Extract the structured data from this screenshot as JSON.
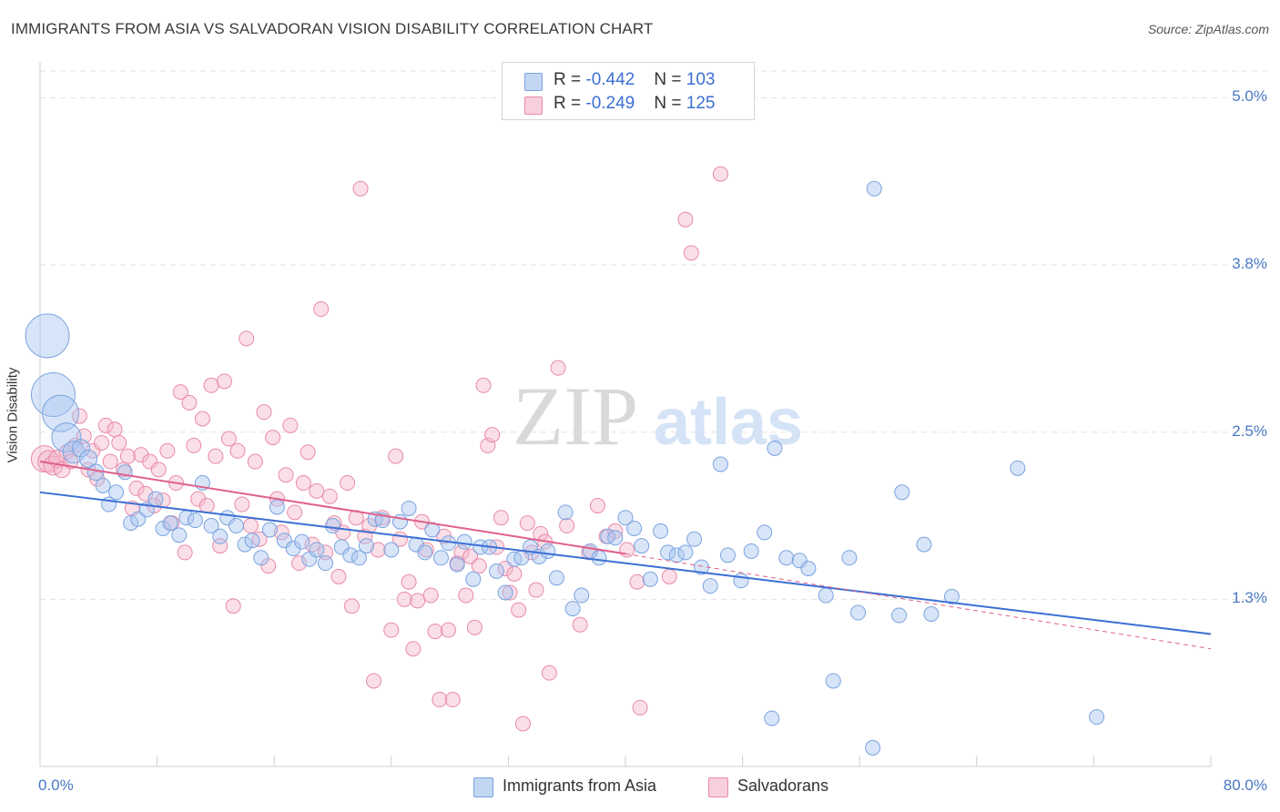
{
  "title": "IMMIGRANTS FROM ASIA VS SALVADORAN VISION DISABILITY CORRELATION CHART",
  "source": "Source: ZipAtlas.com",
  "watermark": {
    "zip": "ZIP",
    "atlas": "atlas"
  },
  "colors": {
    "asia_fill": "#a9c6ef",
    "asia_stroke": "#7aa3df",
    "asia_line": "#3b6fd4",
    "salv_fill": "#f5b8cb",
    "salv_stroke": "#e98aa8",
    "salv_line": "#e0608a",
    "tick_label": "#4a78c4",
    "grid": "#e2e2e2"
  },
  "legend_top": {
    "rows": [
      {
        "r_label": "R = ",
        "r_value": "-0.442",
        "n_label": "N = ",
        "n_value": "103"
      },
      {
        "r_label": "R = ",
        "r_value": "-0.249",
        "n_label": "N = ",
        "n_value": "125"
      }
    ]
  },
  "legend_bottom": {
    "items": [
      "Immigrants from Asia",
      "Salvadorans"
    ]
  },
  "chart_data": {
    "type": "scatter",
    "xlabel": "",
    "ylabel": "Vision Disability",
    "xlim": [
      0,
      80
    ],
    "ylim": [
      0,
      5.2
    ],
    "x_tick_labels": [
      {
        "value": 0,
        "label": "0.0%"
      },
      {
        "value": 80,
        "label": "80.0%"
      }
    ],
    "y_tick_labels": [
      {
        "value": 1.25,
        "label": "1.3%"
      },
      {
        "value": 2.5,
        "label": "2.5%"
      },
      {
        "value": 3.75,
        "label": "3.8%"
      },
      {
        "value": 5.0,
        "label": "5.0%"
      }
    ],
    "grid": true,
    "legend_position": "top-center",
    "series": [
      {
        "name": "Immigrants from Asia",
        "r": -0.442,
        "n": 103,
        "trend": {
          "x": [
            0,
            80
          ],
          "y": [
            2.05,
            0.99
          ]
        },
        "points": [
          [
            0.5,
            3.22,
            3
          ],
          [
            0.9,
            2.78,
            3
          ],
          [
            1.4,
            2.64,
            2.5
          ],
          [
            1.8,
            2.46,
            2
          ],
          [
            2.3,
            2.35,
            1.5
          ],
          [
            2.8,
            2.38,
            1.2
          ],
          [
            3.3,
            2.3,
            1.2
          ],
          [
            3.8,
            2.2,
            1.1
          ],
          [
            4.3,
            2.1,
            1
          ],
          [
            4.7,
            1.96,
            1
          ],
          [
            5.2,
            2.05,
            1
          ],
          [
            5.8,
            2.2,
            1
          ],
          [
            6.2,
            1.82,
            1
          ],
          [
            6.7,
            1.85,
            1
          ],
          [
            7.3,
            1.92,
            1
          ],
          [
            7.9,
            2.0,
            1
          ],
          [
            8.4,
            1.78,
            1
          ],
          [
            8.9,
            1.82,
            1
          ],
          [
            9.5,
            1.73,
            1
          ],
          [
            10.0,
            1.86,
            1
          ],
          [
            10.6,
            1.84,
            1
          ],
          [
            11.1,
            2.12,
            1
          ],
          [
            11.7,
            1.8,
            1
          ],
          [
            12.3,
            1.72,
            1
          ],
          [
            12.8,
            1.86,
            1
          ],
          [
            13.4,
            1.8,
            1
          ],
          [
            14.0,
            1.66,
            1
          ],
          [
            14.5,
            1.69,
            1
          ],
          [
            15.1,
            1.56,
            1
          ],
          [
            15.7,
            1.77,
            1
          ],
          [
            16.2,
            1.94,
            1
          ],
          [
            16.7,
            1.69,
            1
          ],
          [
            17.3,
            1.63,
            1
          ],
          [
            17.9,
            1.68,
            1
          ],
          [
            18.4,
            1.55,
            1
          ],
          [
            18.9,
            1.62,
            1
          ],
          [
            19.5,
            1.52,
            1
          ],
          [
            20.0,
            1.8,
            1
          ],
          [
            20.6,
            1.64,
            1
          ],
          [
            21.2,
            1.58,
            1
          ],
          [
            21.8,
            1.56,
            1
          ],
          [
            22.3,
            1.65,
            1
          ],
          [
            22.9,
            1.85,
            1
          ],
          [
            23.4,
            1.84,
            1
          ],
          [
            24.0,
            1.62,
            1
          ],
          [
            24.6,
            1.83,
            1
          ],
          [
            25.2,
            1.93,
            1
          ],
          [
            25.7,
            1.66,
            1
          ],
          [
            26.3,
            1.6,
            1
          ],
          [
            26.8,
            1.77,
            1
          ],
          [
            27.4,
            1.56,
            1
          ],
          [
            27.9,
            1.67,
            1
          ],
          [
            28.5,
            1.51,
            1
          ],
          [
            29.0,
            1.68,
            1
          ],
          [
            29.6,
            1.4,
            1
          ],
          [
            30.1,
            1.64,
            1
          ],
          [
            30.7,
            1.64,
            1
          ],
          [
            31.2,
            1.46,
            1
          ],
          [
            31.8,
            1.3,
            1
          ],
          [
            32.4,
            1.55,
            1
          ],
          [
            32.9,
            1.56,
            1
          ],
          [
            33.5,
            1.64,
            1
          ],
          [
            34.1,
            1.57,
            1
          ],
          [
            34.7,
            1.61,
            1
          ],
          [
            35.3,
            1.41,
            1
          ],
          [
            35.9,
            1.9,
            1
          ],
          [
            36.4,
            1.18,
            1
          ],
          [
            37.0,
            1.28,
            1
          ],
          [
            37.6,
            1.61,
            1
          ],
          [
            38.2,
            1.56,
            1
          ],
          [
            38.8,
            1.72,
            1
          ],
          [
            39.3,
            1.71,
            1
          ],
          [
            40.0,
            1.86,
            1
          ],
          [
            40.6,
            1.78,
            1
          ],
          [
            41.1,
            1.65,
            1
          ],
          [
            41.7,
            1.4,
            1
          ],
          [
            42.4,
            1.76,
            1
          ],
          [
            42.9,
            1.6,
            1
          ],
          [
            43.5,
            1.58,
            1
          ],
          [
            44.1,
            1.6,
            1
          ],
          [
            44.7,
            1.7,
            1
          ],
          [
            45.2,
            1.49,
            1
          ],
          [
            45.8,
            1.35,
            1
          ],
          [
            46.5,
            2.26,
            1
          ],
          [
            47.0,
            1.58,
            1
          ],
          [
            47.9,
            1.39,
            1
          ],
          [
            48.6,
            1.61,
            1
          ],
          [
            49.5,
            1.75,
            1
          ],
          [
            50.2,
            2.38,
            1
          ],
          [
            51.0,
            1.56,
            1
          ],
          [
            51.9,
            1.54,
            1
          ],
          [
            52.5,
            1.48,
            1
          ],
          [
            53.7,
            1.28,
            1
          ],
          [
            54.2,
            0.64,
            1
          ],
          [
            55.3,
            1.56,
            1
          ],
          [
            55.9,
            1.15,
            1
          ],
          [
            56.9,
            0.14,
            1
          ],
          [
            58.7,
            1.13,
            1
          ],
          [
            60.4,
            1.66,
            1
          ],
          [
            60.9,
            1.14,
            1
          ],
          [
            62.3,
            1.27,
            1
          ],
          [
            66.8,
            2.23,
            1
          ],
          [
            57.0,
            4.32,
            1
          ],
          [
            58.9,
            2.05,
            1
          ],
          [
            72.2,
            0.37,
            1
          ],
          [
            50.0,
            0.36,
            1
          ]
        ]
      },
      {
        "name": "Salvadorans",
        "r": -0.249,
        "n": 125,
        "trend": {
          "x": [
            0,
            40
          ],
          "y": [
            2.28,
            1.59
          ]
        },
        "trend_dashed": {
          "x": [
            40,
            80
          ],
          "y": [
            1.59,
            0.88
          ]
        },
        "points": [
          [
            0.3,
            2.3,
            1.8
          ],
          [
            0.6,
            2.28,
            1.5
          ],
          [
            0.9,
            2.25,
            1.3
          ],
          [
            1.2,
            2.3,
            1.2
          ],
          [
            1.5,
            2.22,
            1.1
          ],
          [
            1.8,
            2.35,
            1
          ],
          [
            2.1,
            2.28,
            1
          ],
          [
            2.4,
            2.4,
            1
          ],
          [
            2.7,
            2.62,
            1
          ],
          [
            3.0,
            2.47,
            1
          ],
          [
            3.3,
            2.22,
            1
          ],
          [
            3.6,
            2.36,
            1
          ],
          [
            3.9,
            2.15,
            1
          ],
          [
            4.2,
            2.42,
            1
          ],
          [
            4.5,
            2.55,
            1
          ],
          [
            4.8,
            2.28,
            1
          ],
          [
            5.1,
            2.52,
            1
          ],
          [
            5.4,
            2.42,
            1
          ],
          [
            5.7,
            2.22,
            1
          ],
          [
            6.0,
            2.32,
            1
          ],
          [
            6.3,
            1.93,
            1
          ],
          [
            6.6,
            2.08,
            1
          ],
          [
            6.9,
            2.33,
            1
          ],
          [
            7.2,
            2.04,
            1
          ],
          [
            7.5,
            2.28,
            1
          ],
          [
            7.8,
            1.95,
            1
          ],
          [
            8.1,
            2.22,
            1
          ],
          [
            8.4,
            1.99,
            1
          ],
          [
            8.7,
            2.36,
            1
          ],
          [
            9.0,
            1.82,
            1
          ],
          [
            9.3,
            2.12,
            1
          ],
          [
            9.6,
            2.8,
            1
          ],
          [
            9.9,
            1.6,
            1
          ],
          [
            10.2,
            2.72,
            1
          ],
          [
            10.5,
            2.4,
            1
          ],
          [
            10.8,
            2.0,
            1
          ],
          [
            11.1,
            2.6,
            1
          ],
          [
            11.4,
            1.95,
            1
          ],
          [
            11.7,
            2.85,
            1
          ],
          [
            12.0,
            2.32,
            1
          ],
          [
            12.3,
            1.65,
            1
          ],
          [
            12.6,
            2.88,
            1
          ],
          [
            12.9,
            2.45,
            1
          ],
          [
            13.2,
            1.2,
            1
          ],
          [
            13.5,
            2.36,
            1
          ],
          [
            13.8,
            1.96,
            1
          ],
          [
            14.1,
            3.2,
            1
          ],
          [
            14.4,
            1.8,
            1
          ],
          [
            14.7,
            2.28,
            1
          ],
          [
            15.0,
            1.7,
            1
          ],
          [
            15.3,
            2.65,
            1
          ],
          [
            15.6,
            1.5,
            1
          ],
          [
            15.9,
            2.46,
            1
          ],
          [
            16.2,
            2.0,
            1
          ],
          [
            16.5,
            1.75,
            1
          ],
          [
            16.8,
            2.18,
            1
          ],
          [
            17.1,
            2.55,
            1
          ],
          [
            17.4,
            1.9,
            1
          ],
          [
            17.7,
            1.52,
            1
          ],
          [
            18.0,
            2.12,
            1
          ],
          [
            18.3,
            2.35,
            1
          ],
          [
            18.6,
            1.66,
            1
          ],
          [
            18.9,
            2.06,
            1
          ],
          [
            19.2,
            3.42,
            1
          ],
          [
            19.5,
            1.6,
            1
          ],
          [
            19.8,
            2.02,
            1
          ],
          [
            20.1,
            1.82,
            1
          ],
          [
            20.4,
            1.42,
            1
          ],
          [
            20.7,
            1.75,
            1
          ],
          [
            21.0,
            2.12,
            1
          ],
          [
            21.3,
            1.2,
            1
          ],
          [
            21.6,
            1.86,
            1
          ],
          [
            21.9,
            4.32,
            1
          ],
          [
            22.2,
            1.72,
            1
          ],
          [
            22.5,
            1.8,
            1
          ],
          [
            22.8,
            0.64,
            1
          ],
          [
            23.1,
            1.62,
            1
          ],
          [
            23.4,
            1.86,
            1
          ],
          [
            24.0,
            1.02,
            1
          ],
          [
            24.3,
            2.32,
            1
          ],
          [
            24.6,
            1.7,
            1
          ],
          [
            24.9,
            1.25,
            1
          ],
          [
            25.2,
            1.38,
            1
          ],
          [
            25.5,
            0.88,
            1
          ],
          [
            25.8,
            1.24,
            1
          ],
          [
            26.1,
            1.83,
            1
          ],
          [
            26.4,
            1.62,
            1
          ],
          [
            26.7,
            1.28,
            1
          ],
          [
            27.0,
            1.01,
            1
          ],
          [
            27.3,
            0.5,
            1
          ],
          [
            27.6,
            1.72,
            1
          ],
          [
            27.9,
            1.02,
            1
          ],
          [
            28.2,
            0.5,
            1
          ],
          [
            28.5,
            1.52,
            1
          ],
          [
            28.8,
            1.6,
            1
          ],
          [
            29.1,
            1.28,
            1
          ],
          [
            29.4,
            1.57,
            1
          ],
          [
            29.7,
            1.04,
            1
          ],
          [
            30.0,
            1.5,
            1
          ],
          [
            30.3,
            2.85,
            1
          ],
          [
            30.6,
            2.4,
            1
          ],
          [
            30.9,
            2.48,
            1
          ],
          [
            31.2,
            1.64,
            1
          ],
          [
            31.5,
            1.86,
            1
          ],
          [
            31.8,
            1.48,
            1
          ],
          [
            32.1,
            1.3,
            1
          ],
          [
            32.4,
            1.44,
            1
          ],
          [
            32.7,
            1.17,
            1
          ],
          [
            33.0,
            0.32,
            1
          ],
          [
            33.3,
            1.82,
            1
          ],
          [
            33.6,
            1.6,
            1
          ],
          [
            33.9,
            1.32,
            1
          ],
          [
            34.2,
            1.74,
            1
          ],
          [
            34.5,
            1.68,
            1
          ],
          [
            34.8,
            0.7,
            1
          ],
          [
            35.4,
            2.98,
            1
          ],
          [
            36.0,
            1.8,
            1
          ],
          [
            36.9,
            1.06,
            1
          ],
          [
            37.5,
            1.6,
            1
          ],
          [
            38.1,
            1.95,
            1
          ],
          [
            38.7,
            1.72,
            1
          ],
          [
            39.3,
            1.76,
            1
          ],
          [
            40.1,
            1.62,
            1
          ],
          [
            40.8,
            1.38,
            1
          ],
          [
            41.0,
            0.44,
            1
          ],
          [
            43.0,
            1.42,
            1
          ],
          [
            44.1,
            4.09,
            1
          ],
          [
            44.5,
            3.84,
            1
          ],
          [
            46.5,
            4.43,
            1
          ]
        ]
      }
    ]
  }
}
